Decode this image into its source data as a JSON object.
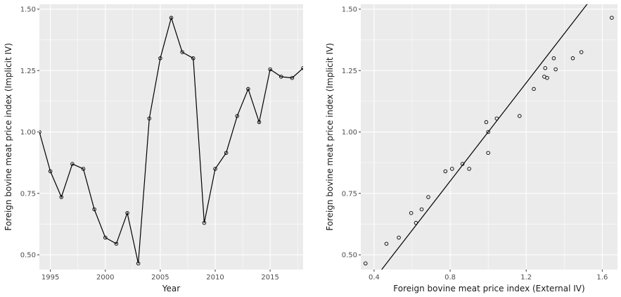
{
  "chart_data": [
    {
      "type": "line",
      "xlabel": "Year",
      "ylabel": "Foreign bovine meat price index (Implicit IV)",
      "xlim": [
        1994,
        2018
      ],
      "ylim": [
        0.44,
        1.52
      ],
      "xticks": [
        1995,
        2000,
        2005,
        2010,
        2015
      ],
      "yticks": [
        0.5,
        0.75,
        1.0,
        1.25,
        1.5
      ],
      "xtick_labels": [
        "1995",
        "2000",
        "2005",
        "2010",
        "2015"
      ],
      "ytick_labels": [
        "0.50",
        "0.75",
        "1.00",
        "1.25",
        "1.50"
      ],
      "grid": true,
      "markers": "open-circle",
      "series": [
        {
          "x": [
            1994,
            1995,
            1996,
            1997,
            1998,
            1999,
            2000,
            2001,
            2002,
            2003,
            2004,
            2005,
            2006,
            2007,
            2008,
            2009,
            2010,
            2011,
            2012,
            2013,
            2014,
            2015,
            2016,
            2017,
            2018
          ],
          "y": [
            1.0,
            0.84,
            0.735,
            0.87,
            0.85,
            0.685,
            0.57,
            0.545,
            0.67,
            0.465,
            1.055,
            1.3,
            1.465,
            1.325,
            1.3,
            0.63,
            0.85,
            0.915,
            1.065,
            1.175,
            1.04,
            1.255,
            1.225,
            1.22,
            1.26
          ]
        }
      ]
    },
    {
      "type": "scatter",
      "xlabel": "Foreign bovine meat price index (External IV)",
      "ylabel": "Foreign bovine meat price index (Implicit IV)",
      "xlim": [
        0.33,
        1.68
      ],
      "ylim": [
        0.44,
        1.52
      ],
      "xticks": [
        0.4,
        0.8,
        1.2,
        1.6
      ],
      "yticks": [
        0.5,
        0.75,
        1.0,
        1.25,
        1.5
      ],
      "xtick_labels": [
        "0.4",
        "0.8",
        "1.2",
        "1.6"
      ],
      "ytick_labels": [
        "0.50",
        "0.75",
        "1.00",
        "1.25",
        "1.50"
      ],
      "grid": true,
      "markers": "open-circle",
      "reference_line": {
        "slope": 1,
        "intercept": 0
      },
      "points": {
        "x": [
          0.355,
          0.465,
          0.53,
          0.595,
          0.62,
          0.65,
          0.685,
          0.775,
          0.81,
          0.865,
          0.9,
          0.99,
          1.0,
          1.0,
          1.045,
          1.165,
          1.24,
          1.295,
          1.3,
          1.31,
          1.345,
          1.355,
          1.445,
          1.49,
          1.65
        ],
        "y": [
          0.465,
          0.545,
          0.57,
          0.67,
          0.63,
          0.685,
          0.735,
          0.84,
          0.85,
          0.87,
          0.85,
          1.04,
          1.0,
          0.915,
          1.055,
          1.065,
          1.175,
          1.225,
          1.26,
          1.22,
          1.3,
          1.255,
          1.3,
          1.325,
          1.465
        ]
      }
    }
  ]
}
